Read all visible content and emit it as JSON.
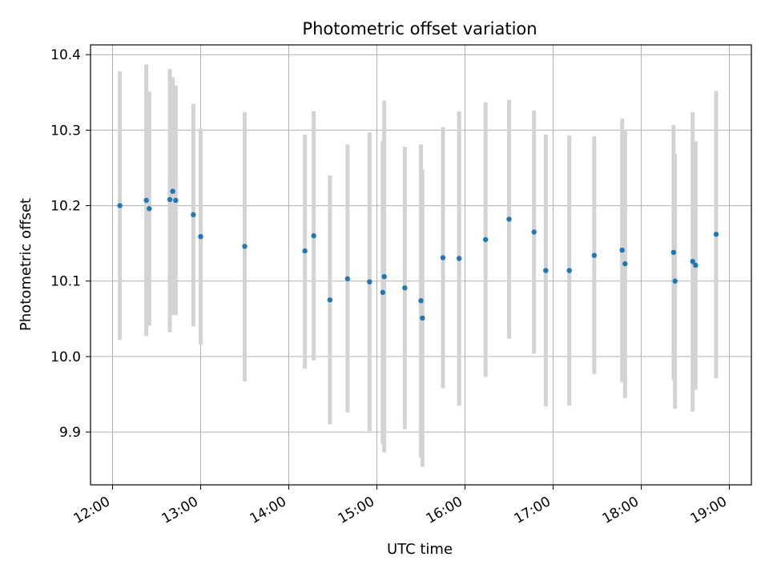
{
  "chart_data": {
    "type": "scatter",
    "title": "Photometric offset variation",
    "xlabel": "UTC time",
    "ylabel": "Photometric offset",
    "x_axis_kind": "time",
    "xlim": [
      "11:45",
      "19:15"
    ],
    "ylim": [
      9.83,
      10.413
    ],
    "grid": true,
    "x_ticks": [
      "12:00",
      "13:00",
      "14:00",
      "15:00",
      "16:00",
      "17:00",
      "18:00",
      "19:00"
    ],
    "y_ticks": [
      "9.9",
      "10.0",
      "10.1",
      "10.2",
      "10.3",
      "10.4"
    ],
    "point_color": "#1f77b4",
    "errorbar_color": "#d3d3d3",
    "points": [
      {
        "x": "12:05",
        "y": 10.2,
        "ylo": 10.022,
        "yhi": 10.378
      },
      {
        "x": "12:23",
        "y": 10.207,
        "ylo": 10.027,
        "yhi": 10.387
      },
      {
        "x": "12:25",
        "y": 10.196,
        "ylo": 10.041,
        "yhi": 10.351
      },
      {
        "x": "12:39",
        "y": 10.208,
        "ylo": 10.032,
        "yhi": 10.381
      },
      {
        "x": "12:41",
        "y": 10.219,
        "ylo": 10.055,
        "yhi": 10.37
      },
      {
        "x": "12:43",
        "y": 10.207,
        "ylo": 10.055,
        "yhi": 10.359
      },
      {
        "x": "12:55",
        "y": 10.188,
        "ylo": 10.04,
        "yhi": 10.335
      },
      {
        "x": "13:00",
        "y": 10.159,
        "ylo": 10.016,
        "yhi": 10.302
      },
      {
        "x": "13:30",
        "y": 10.146,
        "ylo": 9.967,
        "yhi": 10.324
      },
      {
        "x": "14:11",
        "y": 10.14,
        "ylo": 9.984,
        "yhi": 10.294
      },
      {
        "x": "14:17",
        "y": 10.16,
        "ylo": 9.995,
        "yhi": 10.325
      },
      {
        "x": "14:28",
        "y": 10.075,
        "ylo": 9.91,
        "yhi": 10.24
      },
      {
        "x": "14:40",
        "y": 10.103,
        "ylo": 9.926,
        "yhi": 10.281
      },
      {
        "x": "14:55",
        "y": 10.099,
        "ylo": 9.901,
        "yhi": 10.297
      },
      {
        "x": "15:04",
        "y": 10.085,
        "ylo": 9.884,
        "yhi": 10.286
      },
      {
        "x": "15:05",
        "y": 10.106,
        "ylo": 9.873,
        "yhi": 10.339
      },
      {
        "x": "15:19",
        "y": 10.091,
        "ylo": 9.904,
        "yhi": 10.278
      },
      {
        "x": "15:30",
        "y": 10.074,
        "ylo": 9.866,
        "yhi": 10.281
      },
      {
        "x": "15:31",
        "y": 10.051,
        "ylo": 9.854,
        "yhi": 10.248
      },
      {
        "x": "15:45",
        "y": 10.131,
        "ylo": 9.958,
        "yhi": 10.304
      },
      {
        "x": "15:56",
        "y": 10.13,
        "ylo": 9.935,
        "yhi": 10.325
      },
      {
        "x": "16:14",
        "y": 10.155,
        "ylo": 9.973,
        "yhi": 10.337
      },
      {
        "x": "16:30",
        "y": 10.182,
        "ylo": 10.024,
        "yhi": 10.34
      },
      {
        "x": "16:47",
        "y": 10.165,
        "ylo": 10.004,
        "yhi": 10.326
      },
      {
        "x": "16:55",
        "y": 10.114,
        "ylo": 9.934,
        "yhi": 10.294
      },
      {
        "x": "17:11",
        "y": 10.114,
        "ylo": 9.935,
        "yhi": 10.293
      },
      {
        "x": "17:28",
        "y": 10.134,
        "ylo": 9.977,
        "yhi": 10.292
      },
      {
        "x": "17:47",
        "y": 10.141,
        "ylo": 9.966,
        "yhi": 10.315
      },
      {
        "x": "17:49",
        "y": 10.123,
        "ylo": 9.945,
        "yhi": 10.301
      },
      {
        "x": "18:22",
        "y": 10.138,
        "ylo": 9.969,
        "yhi": 10.307
      },
      {
        "x": "18:23",
        "y": 10.1,
        "ylo": 9.931,
        "yhi": 10.269
      },
      {
        "x": "18:35",
        "y": 10.126,
        "ylo": 9.927,
        "yhi": 10.324
      },
      {
        "x": "18:37",
        "y": 10.121,
        "ylo": 9.956,
        "yhi": 10.285
      },
      {
        "x": "18:51",
        "y": 10.162,
        "ylo": 9.971,
        "yhi": 10.352
      }
    ]
  }
}
